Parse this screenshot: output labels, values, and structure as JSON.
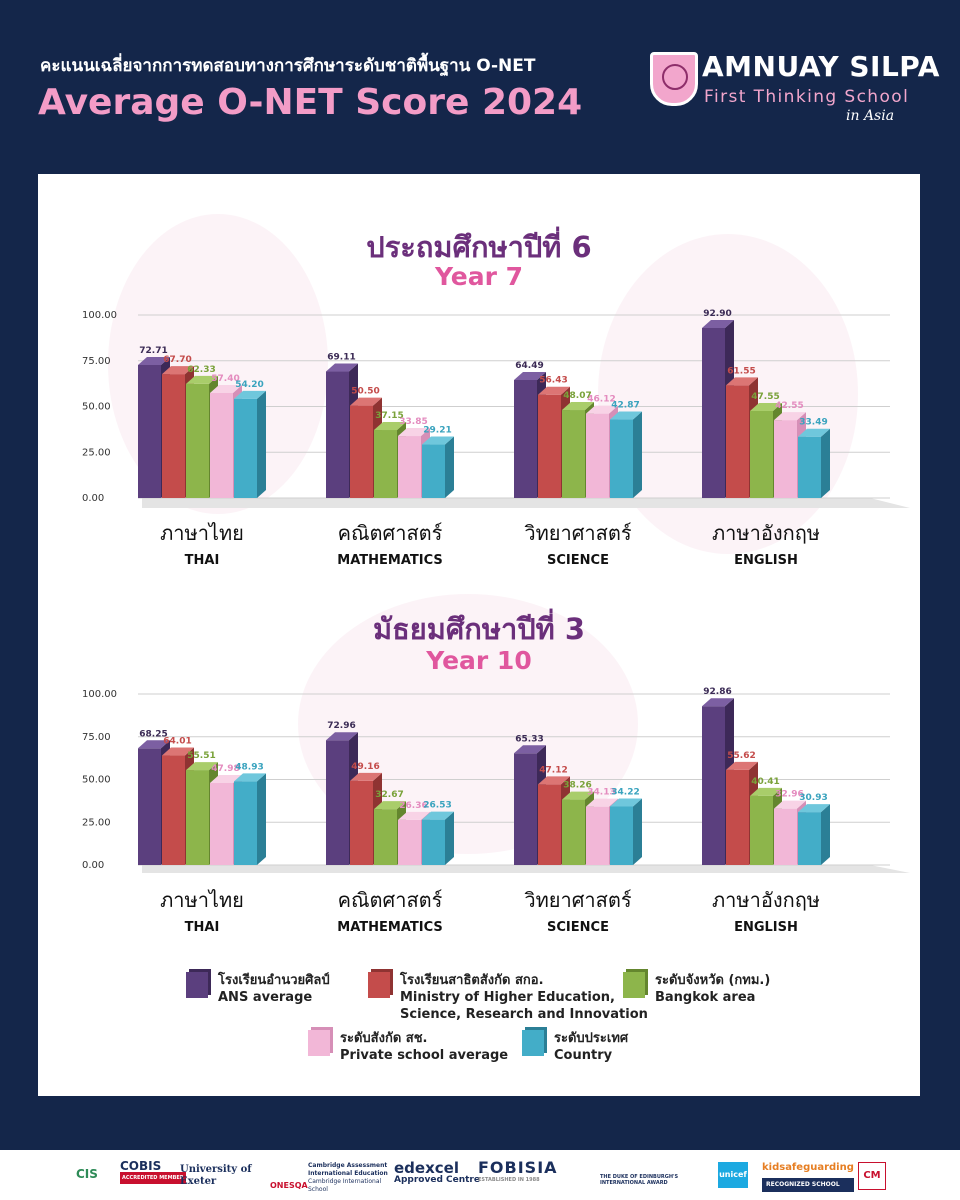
{
  "header": {
    "title_th": "คะแนนเฉลี่ยจากการทดสอบทางการศึกษาระดับชาติพื้นฐาน O-NET",
    "title_en": "Average O-NET Score 2024"
  },
  "logo": {
    "name": "AMNUAY SILPA",
    "tagline": "First Thinking School",
    "tagline2": "in Asia"
  },
  "chart_data": [
    {
      "type": "bar",
      "title": "ประถมศึกษาปีที่ 6",
      "subtitle": "Year 7",
      "ylim": [
        0,
        100
      ],
      "yticks": [
        "100.00",
        "75.00",
        "50.00",
        "25.00",
        "0.00"
      ],
      "categories": [
        {
          "th": "ภาษาไทย",
          "en": "THAI"
        },
        {
          "th": "คณิตศาสตร์",
          "en": "MATHEMATICS"
        },
        {
          "th": "วิทยาศาสตร์",
          "en": "SCIENCE"
        },
        {
          "th": "ภาษาอังกฤษ",
          "en": "ENGLISH"
        }
      ],
      "series": [
        {
          "name": "ANS average",
          "values": [
            72.71,
            69.11,
            64.49,
            92.9
          ],
          "labels": [
            "72.71",
            "69.11",
            "64.49",
            "92.90"
          ]
        },
        {
          "name": "Ministry of Higher Education, Science, Research and Innovation",
          "values": [
            67.7,
            50.5,
            56.43,
            61.55
          ],
          "labels": [
            "67.70",
            "50.50",
            "56.43",
            "61.55"
          ]
        },
        {
          "name": "Bangkok area",
          "values": [
            62.33,
            37.15,
            48.07,
            47.55
          ],
          "labels": [
            "62.33",
            "37.15",
            "48.07",
            "47.55"
          ]
        },
        {
          "name": "Private school average",
          "values": [
            57.4,
            33.85,
            46.12,
            42.55
          ],
          "labels": [
            "57.40",
            "33.85",
            "46.12",
            "42.55"
          ]
        },
        {
          "name": "Country",
          "values": [
            54.2,
            29.21,
            42.87,
            33.49
          ],
          "labels": [
            "54.20",
            "29.21",
            "42.87",
            "33.49"
          ]
        }
      ]
    },
    {
      "type": "bar",
      "title": "มัธยมศึกษาปีที่ 3",
      "subtitle": "Year 10",
      "ylim": [
        0,
        100
      ],
      "yticks": [
        "100.00",
        "75.00",
        "50.00",
        "25.00",
        "0.00"
      ],
      "categories": [
        {
          "th": "ภาษาไทย",
          "en": "THAI"
        },
        {
          "th": "คณิตศาสตร์",
          "en": "MATHEMATICS"
        },
        {
          "th": "วิทยาศาสตร์",
          "en": "SCIENCE"
        },
        {
          "th": "ภาษาอังกฤษ",
          "en": "ENGLISH"
        }
      ],
      "series": [
        {
          "name": "ANS average",
          "values": [
            68.25,
            72.96,
            65.33,
            92.86
          ],
          "labels": [
            "68.25",
            "72.96",
            "65.33",
            "92.86"
          ]
        },
        {
          "name": "Ministry of Higher Education, Science, Research and Innovation",
          "values": [
            64.01,
            49.16,
            47.12,
            55.62
          ],
          "labels": [
            "64.01",
            "49.16",
            "47.12",
            "55.62"
          ]
        },
        {
          "name": "Bangkok area",
          "values": [
            55.51,
            32.67,
            38.26,
            40.41
          ],
          "labels": [
            "55.51",
            "32.67",
            "38.26",
            "40.41"
          ]
        },
        {
          "name": "Private school average",
          "values": [
            47.98,
            26.36,
            34.13,
            32.96
          ],
          "labels": [
            "47.98",
            "26.36",
            "34.13",
            "32.96"
          ]
        },
        {
          "name": "Country",
          "values": [
            48.93,
            26.53,
            34.22,
            30.93
          ],
          "labels": [
            "48.93",
            "26.53",
            "34.22",
            "30.93"
          ]
        }
      ]
    }
  ],
  "series_colors": [
    {
      "front": "#5b3f7e",
      "side": "#3d2958",
      "top": "#7c5fa2",
      "label": "#3b2b55"
    },
    {
      "front": "#c44c4b",
      "side": "#8f3332",
      "top": "#dc7574",
      "label": "#c44c4b"
    },
    {
      "front": "#8db54b",
      "side": "#64862e",
      "top": "#a9cd6a",
      "label": "#7aa23a"
    },
    {
      "front": "#f2b7d7",
      "side": "#d68fb7",
      "top": "#f8d3e6",
      "label": "#e48cbf"
    },
    {
      "front": "#43adc8",
      "side": "#2b7f96",
      "top": "#6fc7dc",
      "label": "#3aa3be"
    }
  ],
  "legend": [
    {
      "lines": [
        "โรงเรียนอำนวยศิลป์",
        "ANS average"
      ]
    },
    {
      "lines": [
        "โรงเรียนสาธิตสังกัด สกอ.",
        "Ministry of Higher Education,",
        "Science, Research and Innovation"
      ]
    },
    {
      "lines": [
        "ระดับจังหวัด (กทม.)",
        "Bangkok area"
      ]
    },
    {
      "lines": [
        "ระดับสังกัด สช.",
        "Private school average"
      ]
    },
    {
      "lines": [
        "ระดับประเทศ",
        "Country"
      ]
    }
  ],
  "footer": {
    "logos": [
      {
        "name": "CIS"
      },
      {
        "name": "COBIS",
        "sub": "ACCREDITED MEMBER"
      },
      {
        "name": "University of Exeter"
      },
      {
        "name": "ONESQA"
      },
      {
        "name": "Cambridge Assessment International Education",
        "sub": "Cambridge International School"
      },
      {
        "name": "edexcel",
        "sub": "Approved Centre"
      },
      {
        "name": "FOBISIA",
        "sub": "ESTABLISHED IN 1988"
      },
      {
        "name": "THE DUKE OF EDINBURGH'S INTERNATIONAL AWARD"
      },
      {
        "name": "unicef"
      },
      {
        "name": "kidsafeguarding",
        "sub": "RECOGNIZED SCHOOL"
      },
      {
        "name": "CM"
      }
    ]
  }
}
